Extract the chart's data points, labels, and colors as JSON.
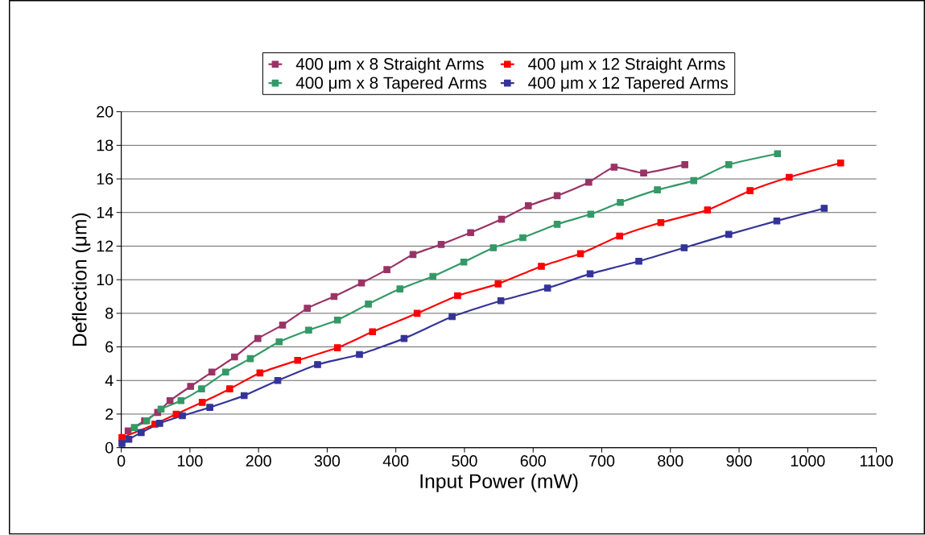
{
  "chart_data": {
    "type": "line",
    "xlabel": "Input Power (mW)",
    "ylabel": "Deflection (μm)",
    "xlim": [
      0,
      1100
    ],
    "xticks": [
      0,
      100,
      200,
      300,
      400,
      500,
      600,
      700,
      800,
      900,
      1000,
      1100
    ],
    "ylim": [
      0,
      20
    ],
    "yticks": [
      0,
      2,
      4,
      6,
      8,
      10,
      12,
      14,
      16,
      18,
      20
    ],
    "grid": "y",
    "legend": "top",
    "marker": "square",
    "line_style": "solid",
    "series": [
      {
        "name": "400 μm x 8 Straight Arms",
        "color": "#993366",
        "x": [
          10,
          34,
          53,
          71,
          101,
          132,
          165,
          199,
          235,
          271,
          310,
          350,
          387,
          425,
          466,
          509,
          554,
          593,
          635,
          681,
          718,
          761,
          821
        ],
        "values": [
          1.0,
          1.6,
          2.1,
          2.8,
          3.65,
          4.5,
          5.4,
          6.5,
          7.3,
          8.3,
          9.0,
          9.8,
          10.6,
          11.5,
          12.1,
          12.8,
          13.6,
          14.4,
          15.0,
          15.8,
          16.7,
          16.35,
          16.85
        ]
      },
      {
        "name": "400 μm x 12 Straight Arms",
        "color": "#ff0000",
        "x": [
          1,
          49,
          80,
          118,
          158,
          202,
          257,
          315,
          366,
          431,
          490,
          549,
          612,
          669,
          726,
          786,
          854,
          916,
          973,
          1048
        ],
        "values": [
          0.6,
          1.4,
          2.0,
          2.7,
          3.5,
          4.45,
          5.2,
          5.95,
          6.9,
          8.0,
          9.05,
          9.75,
          10.8,
          11.55,
          12.6,
          13.4,
          14.15,
          15.3,
          16.1,
          16.95
        ]
      },
      {
        "name": "400 μm x 8 Tapered Arms",
        "color": "#339966",
        "x": [
          19,
          37,
          58,
          87,
          117,
          152,
          188,
          230,
          273,
          315,
          360,
          406,
          454,
          499,
          542,
          585,
          635,
          684,
          727,
          781,
          834,
          885,
          956
        ],
        "values": [
          1.2,
          1.6,
          2.3,
          2.8,
          3.5,
          4.5,
          5.3,
          6.3,
          7.0,
          7.6,
          8.55,
          9.45,
          10.2,
          11.05,
          11.9,
          12.5,
          13.3,
          13.9,
          14.6,
          15.35,
          15.9,
          16.85,
          17.5
        ]
      },
      {
        "name": "400 μm x 12 Tapered Arms",
        "color": "#333399",
        "x": [
          1,
          11,
          29,
          56,
          89,
          129,
          179,
          228,
          286,
          347,
          412,
          482,
          553,
          621,
          683,
          754,
          820,
          885,
          955,
          1024
        ],
        "values": [
          0.25,
          0.5,
          0.9,
          1.45,
          1.9,
          2.4,
          3.1,
          4.0,
          4.95,
          5.55,
          6.5,
          7.8,
          8.75,
          9.5,
          10.35,
          11.1,
          11.9,
          12.7,
          13.5,
          14.25
        ]
      }
    ]
  }
}
